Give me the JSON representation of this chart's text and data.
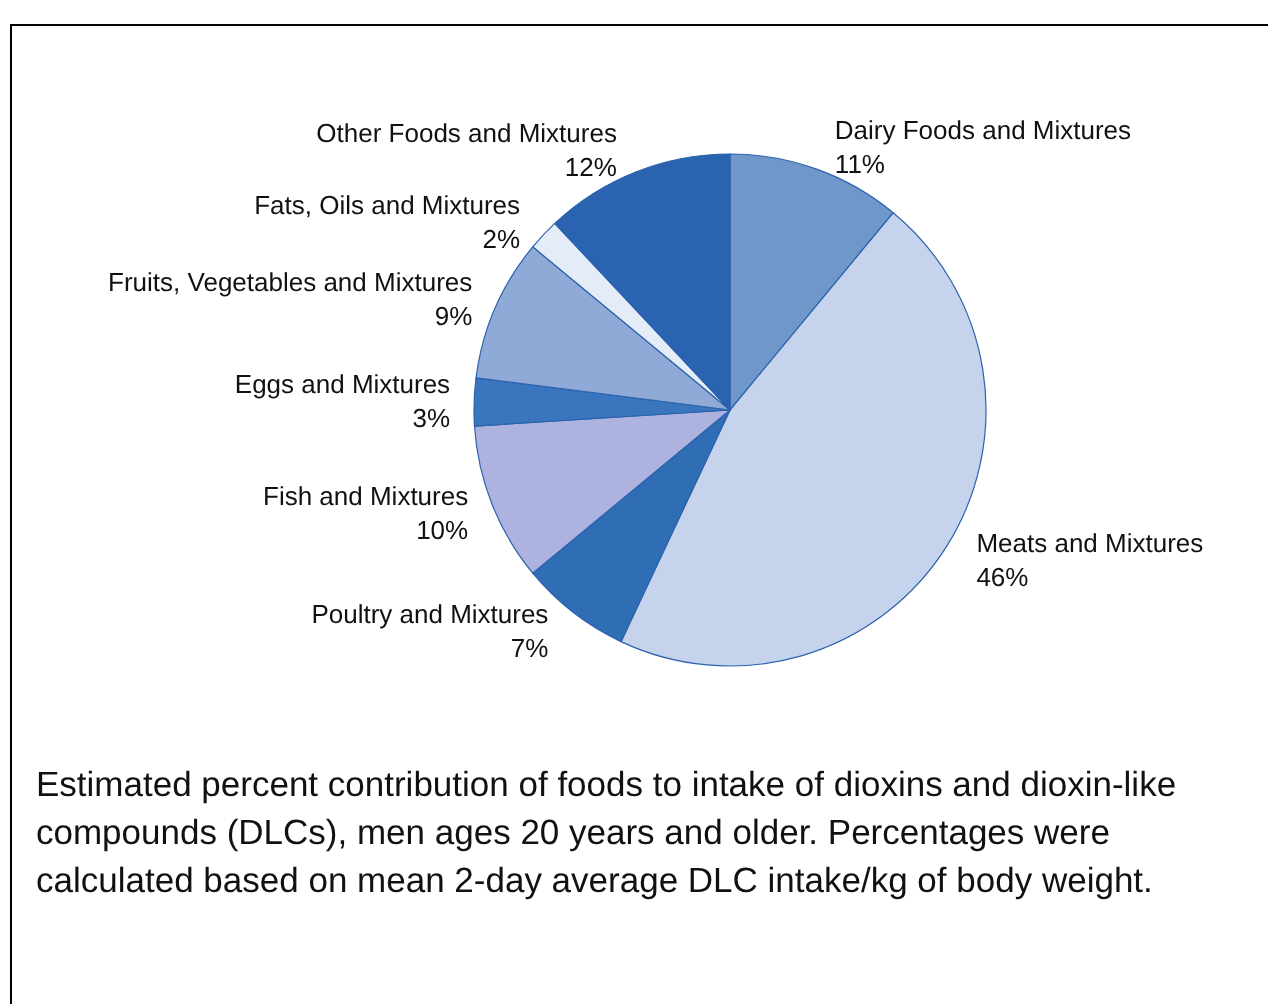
{
  "chart_data": {
    "type": "pie",
    "categories": [
      "Dairy Foods and Mixtures",
      "Meats and Mixtures",
      "Poultry and Mixtures",
      "Fish and Mixtures",
      "Eggs and Mixtures",
      "Fruits, Vegetables and Mixtures",
      "Fats, Oils and Mixtures",
      "Other Foods and Mixtures"
    ],
    "values": [
      11,
      46,
      7,
      10,
      3,
      9,
      2,
      12
    ],
    "value_labels": [
      "11%",
      "46%",
      "7%",
      "10%",
      "3%",
      "9%",
      "2%",
      "12%"
    ],
    "colors": [
      "#6f97c9",
      "#c6d3ec",
      "#2f6db4",
      "#adb3de",
      "#3a76bd",
      "#8faad6",
      "#e4ecf7",
      "#2a63b0"
    ],
    "annotations": [
      "Estimated percent contribution of foods to intake of dioxins and dioxin-like compounds (DLCs), men ages 20 years and older. Percentages were calculated based on mean 2-day average DLC intake/kg of body weight."
    ],
    "legend": false
  }
}
